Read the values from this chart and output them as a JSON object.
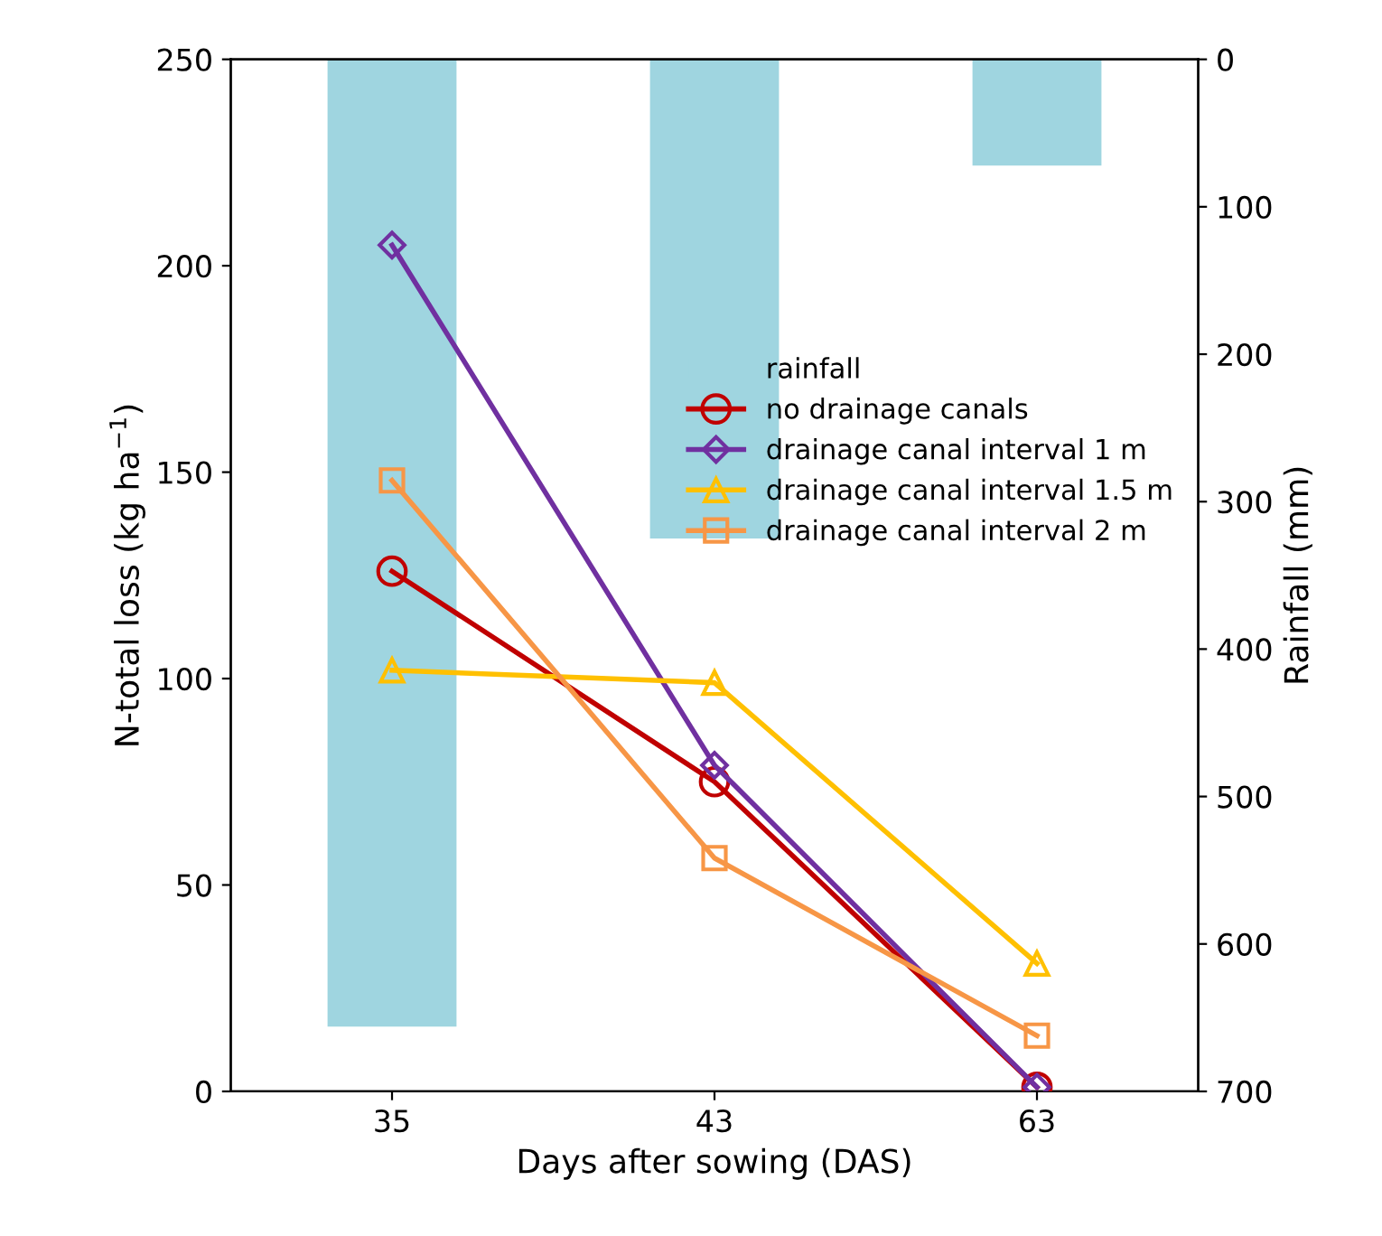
{
  "chart_data": {
    "type": "line",
    "xlabel": "Days after sowing (DAS)",
    "ylabel": "N-total loss (kg ha$^{−1}$)",
    "y2label": "Rainfall (mm)",
    "categories": [
      "35",
      "43",
      "63"
    ],
    "series": [
      {
        "name": "rainfall",
        "type": "bar",
        "axis": "y2",
        "color": "#9fd5e0",
        "values": [
          656,
          325,
          72
        ]
      },
      {
        "name": "no drainage canals",
        "color": "#c00000",
        "marker": "circle",
        "values": [
          126,
          75,
          1
        ]
      },
      {
        "name": "drainage canal interval 1 m",
        "color": "#7030a0",
        "marker": "diamond",
        "values": [
          205,
          79,
          1
        ]
      },
      {
        "name": "drainage canal interval 1.5 m",
        "color": "#ffc000",
        "marker": "triangle",
        "values": [
          102,
          99,
          31
        ]
      },
      {
        "name": "drainage canal interval 2 m",
        "color": "#f79646",
        "marker": "square",
        "values": [
          148,
          56.5,
          13.5
        ]
      }
    ],
    "ylim": [
      0,
      250
    ],
    "yticks": [
      0,
      50,
      100,
      150,
      200,
      250
    ],
    "y2lim": [
      700,
      0
    ],
    "y2ticks": [
      0,
      100,
      200,
      300,
      400,
      500,
      600,
      700
    ],
    "grid": false,
    "legend": "right"
  }
}
